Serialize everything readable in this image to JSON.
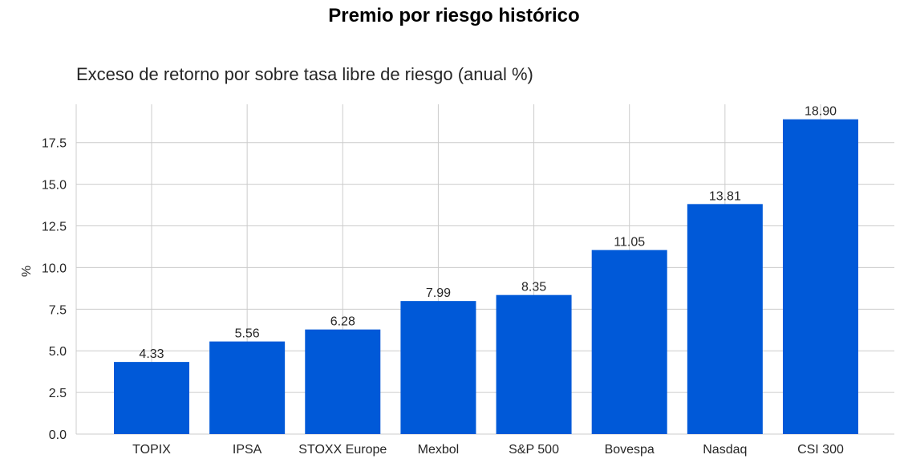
{
  "chart_data": {
    "type": "bar",
    "title": "Premio por riesgo histórico",
    "subtitle": "Exceso de retorno por sobre tasa libre de riesgo  (anual %)",
    "xlabel": "",
    "ylabel": "%",
    "categories": [
      "TOPIX",
      "IPSA",
      "STOXX Europe",
      "Mexbol",
      "S&P 500",
      "Bovespa",
      "Nasdaq",
      "CSI 300"
    ],
    "values": [
      4.33,
      5.56,
      6.28,
      7.99,
      8.35,
      11.05,
      13.81,
      18.9
    ],
    "data_labels": [
      "4.33",
      "5.56",
      "6.28",
      "7.99",
      "8.35",
      "11.05",
      "13.81",
      "18.90"
    ],
    "ylim": [
      0,
      19.8
    ],
    "yticks": [
      0,
      2.5,
      5,
      7.5,
      10,
      12.5,
      15,
      17.5
    ],
    "ytick_labels": [
      "0.0",
      "2.5",
      "5.0",
      "7.5",
      "10.0",
      "12.5",
      "15.0",
      "17.5"
    ],
    "grid": true,
    "legend": "none",
    "colors": {
      "bar": "#0059d8",
      "grid": "#cccccc",
      "text": "#262626"
    }
  }
}
